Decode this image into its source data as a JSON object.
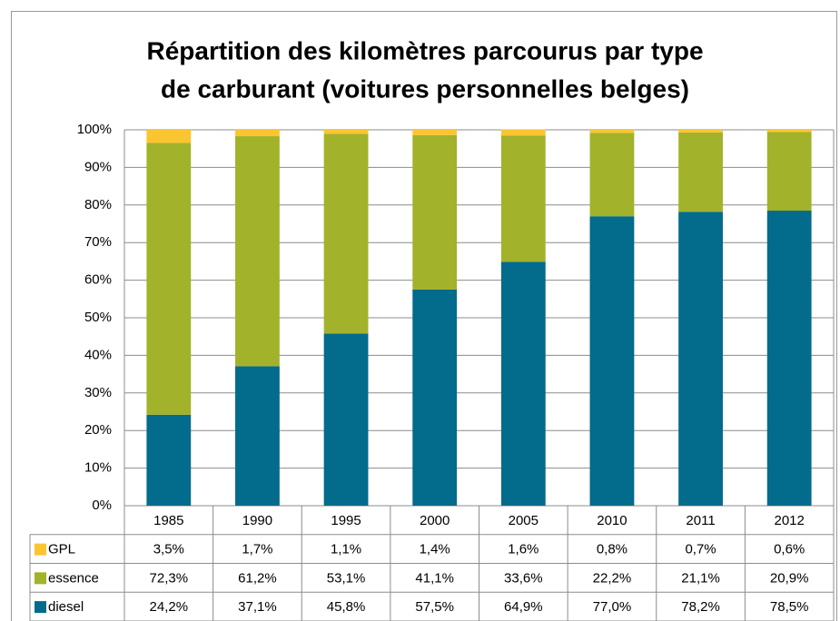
{
  "chart_data": {
    "type": "stacked_bar",
    "title": [
      "Répartition des kilomètres parcourus par type",
      "de carburant (voitures personnelles belges)"
    ],
    "categories": [
      "1985",
      "1990",
      "1995",
      "2000",
      "2005",
      "2010",
      "2011",
      "2012"
    ],
    "series": [
      {
        "name": "GPL",
        "color": "#fbc532",
        "values": [
          3.5,
          1.7,
          1.1,
          1.4,
          1.6,
          0.8,
          0.7,
          0.6
        ],
        "value_labels": [
          "3,5%",
          "1,7%",
          "1,1%",
          "1,4%",
          "1,6%",
          "0,8%",
          "0,7%",
          "0,6%"
        ]
      },
      {
        "name": "essence",
        "color": "#a2b22b",
        "values": [
          72.3,
          61.2,
          53.1,
          41.1,
          33.6,
          22.2,
          21.1,
          20.9
        ],
        "value_labels": [
          "72,3%",
          "61,2%",
          "53,1%",
          "41,1%",
          "33,6%",
          "22,2%",
          "21,1%",
          "20,9%"
        ]
      },
      {
        "name": "diesel",
        "color": "#036b8b",
        "values": [
          24.2,
          37.1,
          45.8,
          57.5,
          64.9,
          77.0,
          78.2,
          78.5
        ],
        "value_labels": [
          "24,2%",
          "37,1%",
          "45,8%",
          "57,5%",
          "64,9%",
          "77,0%",
          "78,2%",
          "78,5%"
        ]
      }
    ],
    "ylim": [
      0,
      100
    ],
    "yticks": [
      {
        "value": 0,
        "label": "0%"
      },
      {
        "value": 10,
        "label": "10%"
      },
      {
        "value": 20,
        "label": "20%"
      },
      {
        "value": 30,
        "label": "30%"
      },
      {
        "value": 40,
        "label": "40%"
      },
      {
        "value": 50,
        "label": "50%"
      },
      {
        "value": 60,
        "label": "60%"
      },
      {
        "value": 70,
        "label": "70%"
      },
      {
        "value": 80,
        "label": "80%"
      },
      {
        "value": 90,
        "label": "90%"
      },
      {
        "value": 100,
        "label": "100%"
      }
    ],
    "grid": true
  }
}
